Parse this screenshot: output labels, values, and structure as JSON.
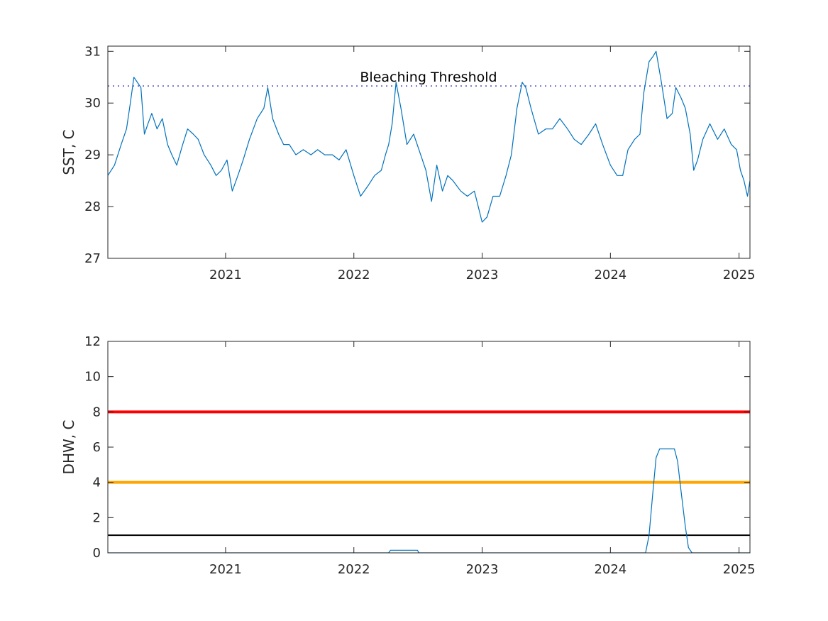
{
  "chart_data": [
    {
      "type": "line",
      "ylabel": "SST, C",
      "xlim": [
        "2020-02-01",
        "2025-02-01"
      ],
      "ylim": [
        27,
        31.1
      ],
      "yticks": [
        27,
        28,
        29,
        30,
        31
      ],
      "xticks": [
        {
          "date": "2021-01-01",
          "label": "2021"
        },
        {
          "date": "2022-01-01",
          "label": "2022"
        },
        {
          "date": "2023-01-01",
          "label": "2023"
        },
        {
          "date": "2024-01-01",
          "label": "2024"
        },
        {
          "date": "2025-01-01",
          "label": "2025"
        }
      ],
      "grid": false,
      "threshold": {
        "label": "Bleaching Threshold",
        "value": 30.33,
        "color": "#4a4abf",
        "style": "dotted"
      },
      "series": [
        {
          "color": "#0072bd",
          "x": [
            "2020-02-01",
            "2020-02-20",
            "2020-03-10",
            "2020-03-25",
            "2020-04-05",
            "2020-04-15",
            "2020-04-25",
            "2020-05-05",
            "2020-05-15",
            "2020-05-25",
            "2020-06-05",
            "2020-06-20",
            "2020-07-05",
            "2020-07-20",
            "2020-08-01",
            "2020-08-15",
            "2020-09-01",
            "2020-09-15",
            "2020-10-01",
            "2020-10-15",
            "2020-11-01",
            "2020-11-20",
            "2020-12-05",
            "2020-12-20",
            "2021-01-05",
            "2021-01-20",
            "2021-02-05",
            "2021-02-20",
            "2021-03-10",
            "2021-04-01",
            "2021-04-20",
            "2021-05-01",
            "2021-05-15",
            "2021-06-01",
            "2021-06-15",
            "2021-07-01",
            "2021-07-20",
            "2021-08-10",
            "2021-09-01",
            "2021-09-20",
            "2021-10-10",
            "2021-11-01",
            "2021-11-20",
            "2021-12-10",
            "2022-01-01",
            "2022-01-20",
            "2022-02-10",
            "2022-03-01",
            "2022-03-20",
            "2022-04-01",
            "2022-04-10",
            "2022-04-20",
            "2022-05-01",
            "2022-05-15",
            "2022-06-01",
            "2022-06-20",
            "2022-07-10",
            "2022-07-25",
            "2022-08-10",
            "2022-08-25",
            "2022-09-10",
            "2022-09-25",
            "2022-10-10",
            "2022-11-01",
            "2022-11-20",
            "2022-12-10",
            "2023-01-01",
            "2023-01-15",
            "2023-02-01",
            "2023-02-20",
            "2023-03-10",
            "2023-03-25",
            "2023-04-10",
            "2023-04-25",
            "2023-05-05",
            "2023-05-20",
            "2023-06-10",
            "2023-07-01",
            "2023-07-20",
            "2023-08-10",
            "2023-09-01",
            "2023-09-20",
            "2023-10-10",
            "2023-11-01",
            "2023-11-20",
            "2023-12-10",
            "2024-01-01",
            "2024-01-20",
            "2024-02-05",
            "2024-02-20",
            "2024-03-10",
            "2024-03-25",
            "2024-04-05",
            "2024-04-20",
            "2024-05-01",
            "2024-05-10",
            "2024-05-25",
            "2024-06-10",
            "2024-06-25",
            "2024-07-05",
            "2024-07-20",
            "2024-08-01",
            "2024-08-15",
            "2024-08-25",
            "2024-09-05",
            "2024-09-20",
            "2024-10-10",
            "2024-11-01",
            "2024-11-20",
            "2024-12-10",
            "2024-12-25",
            "2025-01-05",
            "2025-01-15",
            "2025-01-25",
            "2025-02-01"
          ],
          "values": [
            28.6,
            28.8,
            29.2,
            29.5,
            30.0,
            30.5,
            30.4,
            30.3,
            29.4,
            29.6,
            29.8,
            29.5,
            29.7,
            29.2,
            29.0,
            28.8,
            29.2,
            29.5,
            29.4,
            29.3,
            29.0,
            28.8,
            28.6,
            28.7,
            28.9,
            28.3,
            28.6,
            28.9,
            29.3,
            29.7,
            29.9,
            30.3,
            29.7,
            29.4,
            29.2,
            29.2,
            29.0,
            29.1,
            29.0,
            29.1,
            29.0,
            29.0,
            28.9,
            29.1,
            28.6,
            28.2,
            28.4,
            28.6,
            28.7,
            29.0,
            29.2,
            29.6,
            30.4,
            29.9,
            29.2,
            29.4,
            29.0,
            28.7,
            28.1,
            28.8,
            28.3,
            28.6,
            28.5,
            28.3,
            28.2,
            28.3,
            27.7,
            27.8,
            28.2,
            28.2,
            28.6,
            29.0,
            29.9,
            30.4,
            30.3,
            29.9,
            29.4,
            29.5,
            29.5,
            29.7,
            29.5,
            29.3,
            29.2,
            29.4,
            29.6,
            29.2,
            28.8,
            28.6,
            28.6,
            29.1,
            29.3,
            29.4,
            30.2,
            30.8,
            30.9,
            31.0,
            30.4,
            29.7,
            29.8,
            30.3,
            30.1,
            29.9,
            29.4,
            28.7,
            28.9,
            29.3,
            29.6,
            29.3,
            29.5,
            29.2,
            29.1,
            28.7,
            28.5,
            28.2,
            28.5
          ]
        }
      ]
    },
    {
      "type": "line",
      "ylabel": "DHW, C",
      "xlim": [
        "2020-02-01",
        "2025-02-01"
      ],
      "ylim": [
        0,
        12
      ],
      "yticks": [
        0,
        2,
        4,
        6,
        8,
        10,
        12
      ],
      "xticks": [
        {
          "date": "2021-01-01",
          "label": "2021"
        },
        {
          "date": "2022-01-01",
          "label": "2022"
        },
        {
          "date": "2023-01-01",
          "label": "2023"
        },
        {
          "date": "2024-01-01",
          "label": "2024"
        },
        {
          "date": "2025-01-01",
          "label": "2025"
        }
      ],
      "grid": false,
      "reference_lines": [
        {
          "value": 8,
          "color": "#ff0000"
        },
        {
          "value": 4,
          "color": "#ffa500"
        },
        {
          "value": 1,
          "color": "#000000"
        }
      ],
      "series": [
        {
          "color": "#0072bd",
          "x": [
            "2020-02-01",
            "2022-04-10",
            "2022-04-15",
            "2022-07-01",
            "2022-07-05",
            "2024-04-10",
            "2024-04-20",
            "2024-05-01",
            "2024-05-10",
            "2024-05-20",
            "2024-06-01",
            "2024-06-10",
            "2024-06-20",
            "2024-07-01",
            "2024-07-10",
            "2024-07-20",
            "2024-08-01",
            "2024-08-10",
            "2024-08-20",
            "2025-02-01"
          ],
          "values": [
            0,
            0,
            0.15,
            0.15,
            0,
            0,
            1.0,
            3.5,
            5.4,
            5.9,
            5.9,
            5.9,
            5.9,
            5.9,
            5.2,
            3.5,
            1.5,
            0.3,
            0,
            0
          ]
        }
      ]
    }
  ]
}
